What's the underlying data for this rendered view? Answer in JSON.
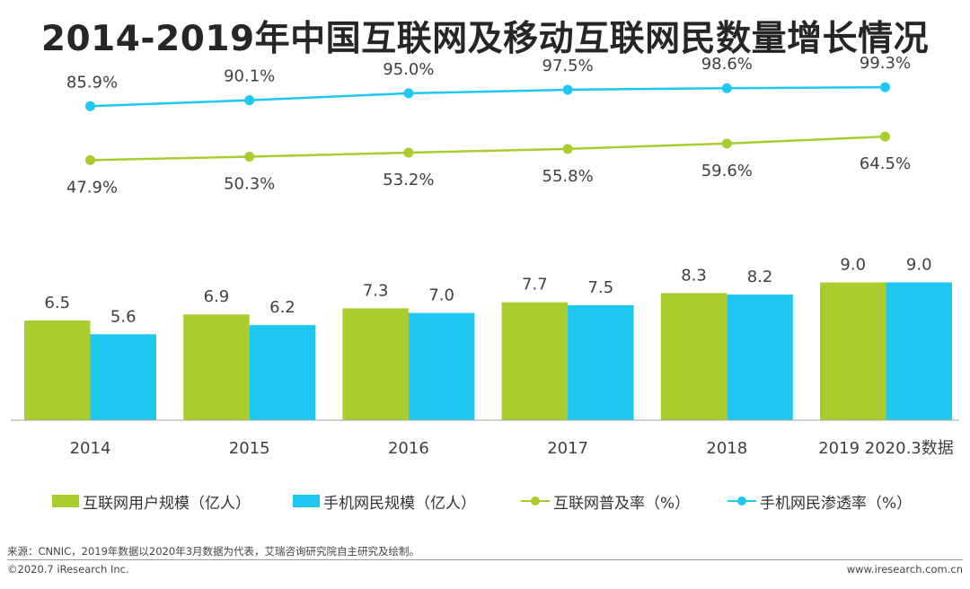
{
  "title": "2014-2019年中国互联网及移动互联网民数量增长情况",
  "footer": {
    "source": "来源：CNNIC，2019年数据以2020年3月数据为代表，艾瑞咨询研究院自主研究及绘制。",
    "copyright": "©2020.7 iResearch Inc.",
    "website": "www.iresearch.com.cn"
  },
  "colors": {
    "green": "#a9cd2d",
    "blue": "#1ec8f0"
  },
  "chart_data": {
    "type": "bar",
    "categories": [
      "2014",
      "2015",
      "2016",
      "2017",
      "2018",
      "2019 2020.3数据"
    ],
    "series": [
      {
        "name": "互联网用户规模（亿人）",
        "kind": "bar",
        "color": "#a9cd2d",
        "values": [
          6.5,
          6.9,
          7.3,
          7.7,
          8.3,
          9.0
        ]
      },
      {
        "name": "手机网民规模（亿人）",
        "kind": "bar",
        "color": "#1ec8f0",
        "values": [
          5.6,
          6.2,
          7.0,
          7.5,
          8.2,
          9.0
        ]
      },
      {
        "name": "互联网普及率（%）",
        "kind": "line",
        "color": "#a9cd2d",
        "values": [
          47.9,
          50.3,
          53.2,
          55.8,
          59.6,
          64.5
        ]
      },
      {
        "name": "手机网民渗透率（%）",
        "kind": "line",
        "color": "#1ec8f0",
        "values": [
          85.9,
          90.1,
          95.0,
          97.5,
          98.6,
          99.3
        ]
      }
    ],
    "bar_labels": [
      [
        "6.5",
        "6.9",
        "7.3",
        "7.7",
        "8.3",
        "9.0"
      ],
      [
        "5.6",
        "6.2",
        "7.0",
        "7.5",
        "8.2",
        "9.0"
      ]
    ],
    "line_labels": [
      [
        "47.9%",
        "50.3%",
        "53.2%",
        "55.8%",
        "59.6%",
        "64.5%"
      ],
      [
        "85.9%",
        "90.1%",
        "95.0%",
        "97.5%",
        "98.6%",
        "99.3%"
      ]
    ],
    "xlabel": "",
    "ylabel": "",
    "legend": "bottom",
    "grid": false
  }
}
